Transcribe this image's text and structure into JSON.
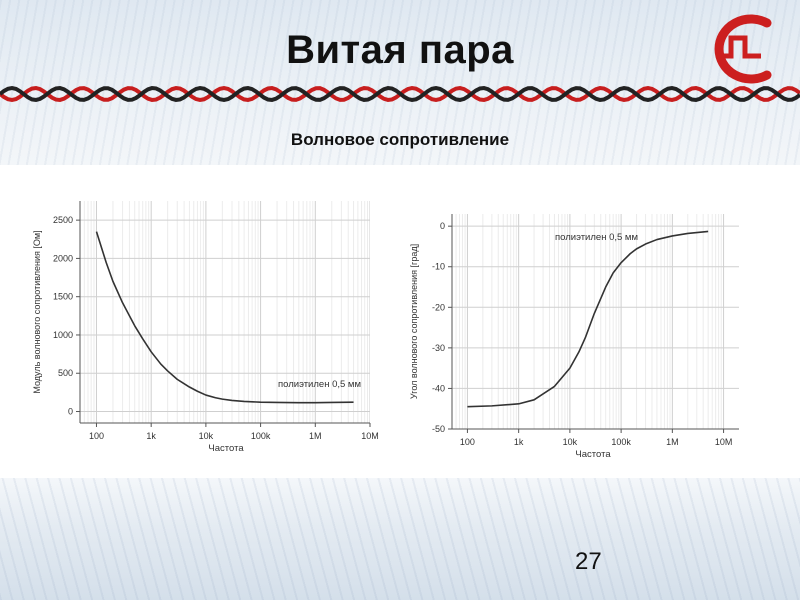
{
  "slide": {
    "title": "Витая пара",
    "subtitle": "Волновое сопротивление",
    "page_number": "27",
    "accent_color": "#cc1f1f"
  },
  "chart_data": [
    {
      "type": "line",
      "xscale": "log",
      "x_ticks": [
        100,
        1000,
        10000,
        100000,
        1000000,
        10000000
      ],
      "x_tick_labels": [
        "100",
        "1k",
        "10k",
        "100k",
        "1M",
        "10M"
      ],
      "xlim": [
        50,
        10000000
      ],
      "ylim": [
        -150,
        2750
      ],
      "y_ticks": [
        0,
        500,
        1000,
        1500,
        2000,
        2500
      ],
      "y_tick_labels": [
        "0",
        "500",
        "1000",
        "1500",
        "2000",
        "2500"
      ],
      "xlabel": "Частота",
      "ylabel": "Модуль волнового сопротивления [Ом]",
      "annotation": "полиэтилен 0,5 мм",
      "grid": true,
      "series": [
        {
          "color": "#333333",
          "x": [
            100,
            150,
            200,
            300,
            500,
            700,
            1000,
            1500,
            2000,
            3000,
            5000,
            7000,
            10000,
            15000,
            20000,
            30000,
            50000,
            100000,
            200000,
            500000,
            1000000,
            2000000,
            5000000
          ],
          "y": [
            2350,
            1950,
            1700,
            1420,
            1120,
            950,
            780,
            620,
            530,
            420,
            320,
            265,
            215,
            180,
            162,
            145,
            132,
            122,
            118,
            116,
            116,
            118,
            122
          ]
        }
      ]
    },
    {
      "type": "line",
      "xscale": "log",
      "x_ticks": [
        100,
        1000,
        10000,
        100000,
        1000000,
        10000000
      ],
      "x_tick_labels": [
        "100",
        "1k",
        "10k",
        "100k",
        "1M",
        "10M"
      ],
      "xlim": [
        50,
        20000000
      ],
      "ylim": [
        -50,
        3
      ],
      "y_ticks": [
        0,
        -10,
        -20,
        -30,
        -40,
        -50
      ],
      "y_tick_labels": [
        "0",
        "-10",
        "-20",
        "-30",
        "-40",
        "-50"
      ],
      "xlabel": "Частота",
      "ylabel": "Угол волнового сопротивления [град]",
      "annotation": "полиэтилен 0,5 мм",
      "grid": true,
      "series": [
        {
          "color": "#333333",
          "x": [
            100,
            300,
            1000,
            2000,
            5000,
            10000,
            15000,
            20000,
            30000,
            50000,
            70000,
            100000,
            150000,
            200000,
            300000,
            500000,
            1000000,
            2000000,
            5000000
          ],
          "y": [
            -44.5,
            -44.3,
            -43.8,
            -42.8,
            -39.5,
            -35,
            -31,
            -27.5,
            -21.5,
            -15,
            -11.5,
            -9,
            -6.8,
            -5.6,
            -4.4,
            -3.3,
            -2.4,
            -1.8,
            -1.3
          ]
        }
      ]
    }
  ]
}
